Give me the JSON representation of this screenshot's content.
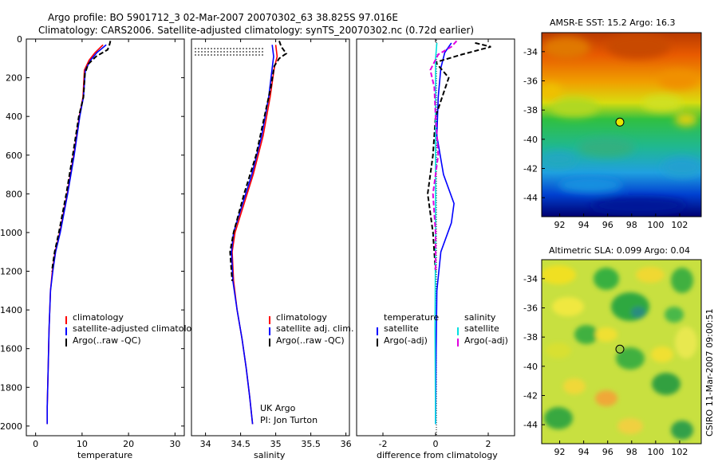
{
  "title_line1": "Argo profile: BO 5901712_3 02-Mar-2007 20070302_63 38.825S 97.016E",
  "title_line2": "Climatology: CARS2006. Satellite-adjusted climatology: synTS_20070302.nc (0.72d earlier)",
  "side_label": "CSIRO 11-Mar-2007 09:00:51",
  "credit": {
    "line1": "UK Argo",
    "line2": "PI: Jon Turton"
  },
  "colors": {
    "climatology": "#ff0000",
    "satellite": "#0000ff",
    "argo": "#000000",
    "cyan": "#00e0e0",
    "magenta": "#e000e0"
  },
  "chart_data": [
    {
      "type": "line",
      "xlabel": "temperature",
      "ylabel": "",
      "xlim": [
        -2,
        32
      ],
      "ylim": [
        2050,
        0
      ],
      "ydir": "reverse",
      "xticks": [
        "0",
        "10",
        "20",
        "30"
      ],
      "xtick_values": [
        0,
        10,
        20,
        30
      ],
      "yticks": [
        "0",
        "200",
        "400",
        "600",
        "800",
        "1000",
        "1200",
        "1400",
        "1600",
        "1800",
        "2000"
      ],
      "ytick_values": [
        0,
        200,
        400,
        600,
        800,
        1000,
        1200,
        1400,
        1600,
        1800,
        2000
      ],
      "legend": [
        "climatology",
        "satellite-adjusted climatology",
        "Argo(..raw -QC)"
      ],
      "series": [
        {
          "name": "climatology",
          "color": "#ff0000",
          "points": [
            [
              14.5,
              30
            ],
            [
              12.8,
              70
            ],
            [
              11.5,
              110
            ],
            [
              10.5,
              160
            ],
            [
              10.2,
              300
            ],
            [
              9.4,
              400
            ],
            [
              8.2,
              600
            ],
            [
              6.8,
              800
            ],
            [
              5.2,
              1000
            ],
            [
              4.2,
              1100
            ],
            [
              3.6,
              1200
            ],
            [
              3.2,
              1300
            ],
            [
              2.9,
              1500
            ],
            [
              2.7,
              1700
            ],
            [
              2.5,
              1900
            ],
            [
              2.5,
              1990
            ]
          ]
        },
        {
          "name": "satellite-adjusted climatology",
          "color": "#0000ff",
          "points": [
            [
              15.2,
              30
            ],
            [
              13.2,
              70
            ],
            [
              11.8,
              110
            ],
            [
              10.7,
              160
            ],
            [
              10.3,
              300
            ],
            [
              9.5,
              400
            ],
            [
              8.3,
              600
            ],
            [
              6.9,
              800
            ],
            [
              5.3,
              1000
            ],
            [
              4.3,
              1100
            ],
            [
              3.7,
              1200
            ],
            [
              3.2,
              1300
            ],
            [
              2.9,
              1500
            ],
            [
              2.7,
              1700
            ],
            [
              2.5,
              1900
            ],
            [
              2.5,
              1990
            ]
          ]
        },
        {
          "name": "Argo(..raw -QC)",
          "color": "#000000",
          "points": [
            [
              16.1,
              10
            ],
            [
              15.9,
              30
            ],
            [
              15.5,
              55
            ],
            [
              13.0,
              90
            ],
            [
              11.3,
              130
            ],
            [
              10.6,
              180
            ],
            [
              10.3,
              300
            ],
            [
              9.3,
              400
            ],
            [
              8.0,
              600
            ],
            [
              6.6,
              800
            ],
            [
              5.0,
              1000
            ],
            [
              4.1,
              1100
            ],
            [
              3.5,
              1200
            ]
          ]
        }
      ]
    },
    {
      "type": "line",
      "xlabel": "salinity",
      "xlim": [
        33.8,
        36.05
      ],
      "ylim": [
        2050,
        0
      ],
      "ydir": "reverse",
      "xticks": [
        "34",
        "34.5",
        "35",
        "35.5",
        "36"
      ],
      "xtick_values": [
        34,
        34.5,
        35,
        35.5,
        36
      ],
      "legend": [
        "climatology",
        "satellite adj. clim.",
        "Argo(..raw -QC)"
      ],
      "series": [
        {
          "name": "climatology",
          "color": "#ff0000",
          "points": [
            [
              35.0,
              30
            ],
            [
              35.02,
              90
            ],
            [
              34.98,
              150
            ],
            [
              34.92,
              300
            ],
            [
              34.82,
              500
            ],
            [
              34.68,
              700
            ],
            [
              34.55,
              850
            ],
            [
              34.42,
              1000
            ],
            [
              34.38,
              1100
            ],
            [
              34.4,
              1250
            ],
            [
              34.45,
              1400
            ],
            [
              34.52,
              1550
            ],
            [
              34.58,
              1700
            ],
            [
              34.63,
              1850
            ],
            [
              34.67,
              1990
            ]
          ]
        },
        {
          "name": "satellite adj. clim.",
          "color": "#0000ff",
          "points": [
            [
              34.95,
              30
            ],
            [
              34.97,
              90
            ],
            [
              34.95,
              150
            ],
            [
              34.9,
              300
            ],
            [
              34.8,
              500
            ],
            [
              34.66,
              700
            ],
            [
              34.53,
              850
            ],
            [
              34.4,
              1000
            ],
            [
              34.37,
              1100
            ],
            [
              34.39,
              1250
            ],
            [
              34.45,
              1400
            ],
            [
              34.52,
              1550
            ],
            [
              34.58,
              1700
            ],
            [
              34.63,
              1850
            ],
            [
              34.67,
              1990
            ]
          ]
        },
        {
          "name": "Argo(..raw -QC)",
          "color": "#000000",
          "points": [
            [
              35.05,
              10
            ],
            [
              35.08,
              40
            ],
            [
              35.15,
              75
            ],
            [
              35.05,
              100
            ],
            [
              34.98,
              140
            ],
            [
              34.93,
              250
            ],
            [
              34.84,
              400
            ],
            [
              34.72,
              600
            ],
            [
              34.55,
              800
            ],
            [
              34.4,
              1000
            ],
            [
              34.35,
              1100
            ],
            [
              34.38,
              1250
            ]
          ]
        }
      ]
    },
    {
      "type": "line",
      "xlabel": "difference from climatology",
      "xlim": [
        -3.0,
        3.0
      ],
      "ylim": [
        2050,
        0
      ],
      "ydir": "reverse",
      "xticks": [
        "-2",
        "0",
        "2"
      ],
      "xtick_values": [
        -2,
        0,
        2
      ],
      "legend": [
        "temperature",
        "satellite",
        "Argo(-adj)",
        "salinity",
        "satellite",
        "Argo(-adj)"
      ],
      "series": [
        {
          "name": "satellite",
          "group": "temperature",
          "color": "#0000ff",
          "points": [
            [
              0.6,
              20
            ],
            [
              0.35,
              70
            ],
            [
              0.2,
              150
            ],
            [
              0.1,
              300
            ],
            [
              0.05,
              500
            ],
            [
              0.3,
              700
            ],
            [
              0.7,
              850
            ],
            [
              0.6,
              950
            ],
            [
              0.2,
              1100
            ],
            [
              0.05,
              1300
            ],
            [
              0.02,
              1600
            ],
            [
              0.0,
              1990
            ]
          ]
        },
        {
          "name": "Argo(-adj)",
          "group": "temperature",
          "color": "#000000",
          "points": [
            [
              1.5,
              20
            ],
            [
              2.1,
              40
            ],
            [
              1.0,
              80
            ],
            [
              0.0,
              120
            ],
            [
              0.5,
              200
            ],
            [
              0.3,
              280
            ],
            [
              0.0,
              400
            ],
            [
              -0.1,
              600
            ],
            [
              -0.3,
              800
            ],
            [
              -0.1,
              1000
            ],
            [
              0.0,
              1200
            ]
          ]
        },
        {
          "name": "satellite",
          "group": "salinity",
          "color": "#00e0e0",
          "points": [
            [
              0.05,
              20
            ],
            [
              0.0,
              100
            ],
            [
              0.0,
              400
            ],
            [
              0.0,
              1000
            ],
            [
              -0.02,
              1500
            ],
            [
              0.0,
              1990
            ]
          ]
        },
        {
          "name": "Argo(-adj)",
          "group": "salinity",
          "color": "#e000e0",
          "points": [
            [
              0.8,
              10
            ],
            [
              0.6,
              40
            ],
            [
              0.1,
              80
            ],
            [
              -0.2,
              160
            ],
            [
              -0.05,
              250
            ],
            [
              0.0,
              400
            ],
            [
              0.1,
              600
            ],
            [
              -0.1,
              800
            ],
            [
              0.0,
              1000
            ],
            [
              0.0,
              1200
            ]
          ]
        }
      ]
    },
    {
      "type": "heatmap",
      "title": "AMSR-E SST: 15.2 Argo: 16.3",
      "xlim": [
        90.5,
        103.8
      ],
      "ylim": [
        -45.3,
        -32.7
      ],
      "xticks": [
        "92",
        "94",
        "96",
        "98",
        "100",
        "102"
      ],
      "xtick_values": [
        92,
        94,
        96,
        98,
        100,
        102
      ],
      "yticks": [
        "-34",
        "-36",
        "-38",
        "-40",
        "-42",
        "-44"
      ],
      "ytick_values": [
        -34,
        -36,
        -38,
        -40,
        -42,
        -44
      ],
      "marker": [
        97.016,
        -38.825
      ]
    },
    {
      "type": "heatmap",
      "title": "Altimetric SLA: 0.099 Argo: 0.04",
      "xlim": [
        90.5,
        103.8
      ],
      "ylim": [
        -45.3,
        -32.7
      ],
      "xticks": [
        "92",
        "94",
        "96",
        "98",
        "100",
        "102"
      ],
      "xtick_values": [
        92,
        94,
        96,
        98,
        100,
        102
      ],
      "yticks": [
        "-34",
        "-36",
        "-38",
        "-40",
        "-42",
        "-44"
      ],
      "ytick_values": [
        -34,
        -36,
        -38,
        -40,
        -42,
        -44
      ],
      "marker": [
        97.016,
        -38.825
      ]
    }
  ]
}
